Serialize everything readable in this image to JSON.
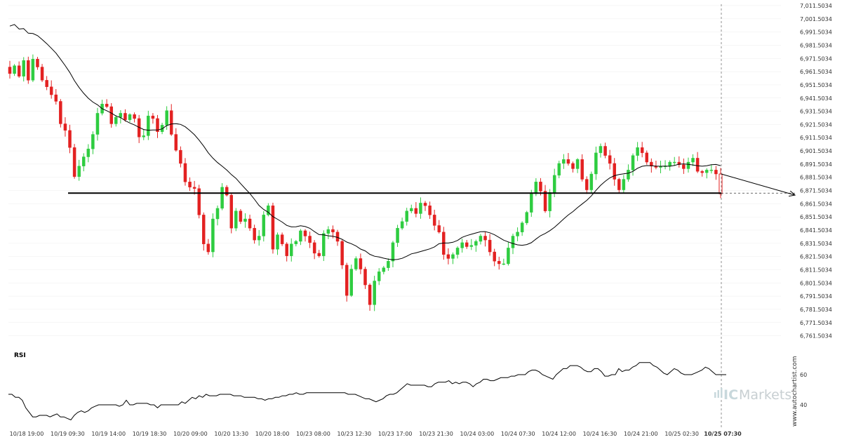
{
  "chart_data": {
    "type": "candlestick",
    "symbol_display": "",
    "y_axis": {
      "position": "right",
      "ticks": [
        "7,011.5034",
        "7,001.5034",
        "6,991.5034",
        "6,981.5034",
        "6,971.5034",
        "6,961.5034",
        "6,951.5034",
        "6,941.5034",
        "6,931.5034",
        "6,921.5034",
        "6,911.5034",
        "6,901.5034",
        "6,891.5034",
        "6,881.5034",
        "6,871.5034",
        "6,861.5034",
        "6,851.5034",
        "6,841.5034",
        "6,831.5034",
        "6,821.5034",
        "6,811.5034",
        "6,801.5034",
        "6,791.5034",
        "6,781.5034",
        "6,771.5034",
        "6,761.5034"
      ],
      "range": [
        6756.5,
        7011.5
      ]
    },
    "x_axis": {
      "ticks": [
        "10/18 19:00",
        "10/19 09:30",
        "10/19 14:00",
        "10/19 18:30",
        "10/20 09:00",
        "10/20 13:30",
        "10/20 18:00",
        "10/23 08:00",
        "10/23 12:30",
        "10/23 17:00",
        "10/23 21:30",
        "10/24 03:00",
        "10/24 07:30",
        "10/24 12:00",
        "10/24 16:30",
        "10/24 21:00",
        "10/25 02:30",
        "10/25 07:30"
      ],
      "highlighted": "10/25 07:30"
    },
    "closes": [
      6960,
      6966,
      6958,
      6970,
      6955,
      6971,
      6965,
      6955,
      6950,
      6944,
      6939,
      6922,
      6917,
      6904,
      6882,
      6890,
      6897,
      6903,
      6914,
      6930,
      6937,
      6935,
      6922,
      6927,
      6930,
      6925,
      6929,
      6926,
      6912,
      6913,
      6928,
      6926,
      6916,
      6921,
      6932,
      6914,
      6902,
      6892,
      6878,
      6874,
      6873,
      6853,
      6831,
      6825,
      6850,
      6858,
      6874,
      6868,
      6843,
      6856,
      6848,
      6850,
      6843,
      6834,
      6837,
      6853,
      6860,
      6827,
      6838,
      6831,
      6822,
      6831,
      6833,
      6841,
      6837,
      6832,
      6824,
      6822,
      6839,
      6842,
      6840,
      6833,
      6815,
      6792,
      6812,
      6820,
      6812,
      6800,
      6785,
      6803,
      6810,
      6813,
      6818,
      6832,
      6843,
      6848,
      6856,
      6858,
      6854,
      6862,
      6860,
      6853,
      6845,
      6840,
      6823,
      6820,
      6823,
      6828,
      6832,
      6829,
      6830,
      6833,
      6837,
      6834,
      6825,
      6818,
      6816,
      6816,
      6828,
      6837,
      6840,
      6847,
      6855,
      6869,
      6878,
      6871,
      6856,
      6870,
      6883,
      6892,
      6895,
      6892,
      6888,
      6895,
      6880,
      6872,
      6884,
      6900,
      6905,
      6898,
      6892,
      6880,
      6872,
      6880,
      6887,
      6898,
      6904,
      6900,
      6893,
      6890,
      6889,
      6890,
      6890,
      6893,
      6893,
      6891,
      6888,
      6893,
      6896,
      6886,
      6885,
      6887,
      6887,
      6884,
      6869
    ],
    "range_start_open": 6965,
    "moving_average_label": "",
    "support_level": 6869.5,
    "projection": {
      "from": 6884,
      "to": 6868
    },
    "rsi": {
      "label": "RSI",
      "ticks": [
        "60",
        "40"
      ],
      "values": [
        47,
        47,
        45,
        45,
        43,
        38,
        35,
        32,
        32,
        33,
        33,
        33,
        32,
        33,
        34,
        32,
        32,
        31,
        30,
        33,
        35,
        36,
        35,
        36,
        38,
        39,
        40,
        40,
        40,
        40,
        40,
        40,
        39,
        40,
        43,
        40,
        40,
        41,
        41,
        41,
        41,
        40,
        40,
        38,
        40,
        40,
        40,
        40,
        40,
        40,
        42,
        41,
        43,
        45,
        44,
        46,
        45,
        47,
        46,
        46,
        46,
        47,
        47,
        47,
        47,
        46,
        46,
        46,
        45,
        45,
        45,
        45,
        44,
        44,
        43,
        44,
        44,
        45,
        45,
        46,
        46,
        47,
        47,
        48,
        47,
        47,
        48,
        48,
        48,
        48,
        48,
        48,
        48,
        48,
        48,
        48,
        48,
        48,
        47,
        47,
        47,
        46,
        45,
        44,
        44,
        43,
        42,
        43,
        44,
        46,
        47,
        47,
        48,
        50,
        52,
        54,
        53,
        53,
        53,
        53,
        53,
        52,
        52,
        54,
        55,
        55,
        55,
        56,
        54,
        55,
        54,
        55,
        55,
        54,
        52,
        54,
        55,
        57,
        57,
        56,
        56,
        57,
        58,
        58,
        58,
        59,
        59,
        60,
        60,
        60,
        62,
        63,
        63,
        62,
        60,
        59,
        58,
        57,
        60,
        62,
        64,
        64,
        66,
        66,
        66,
        65,
        63,
        62,
        62,
        64,
        64,
        62,
        59,
        59,
        60,
        60,
        64,
        62,
        63,
        63,
        65,
        66,
        68,
        68,
        68,
        68,
        66,
        65,
        63,
        61,
        60,
        62,
        64,
        63,
        61,
        60,
        60,
        60,
        61,
        62,
        63,
        65,
        64,
        62,
        60,
        60,
        60,
        60
      ]
    }
  },
  "branding": {
    "watermark_url": "www.autochartist.com",
    "logo_ic": "IC",
    "logo_markets": "Markets"
  },
  "colors": {
    "bullish": "#2ecc40",
    "bearish": "#e32121",
    "line": "#000000",
    "grid": "#eeeeee"
  }
}
